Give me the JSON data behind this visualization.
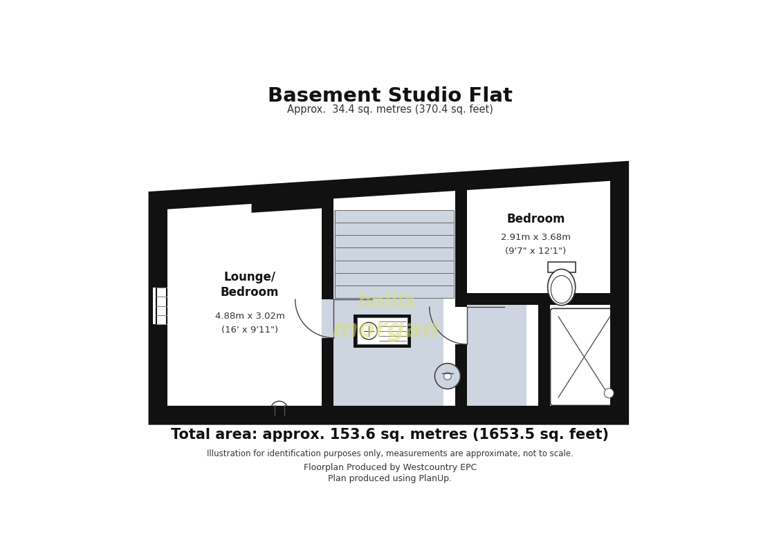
{
  "title": "Basement Studio Flat",
  "subtitle": "Approx.  34.4 sq. metres (370.4 sq. feet)",
  "total_area": "Total area: approx. 153.6 sq. metres (1653.5 sq. feet)",
  "disclaimer": "Illustration for identification purposes only, measurements are approximate, not to scale.",
  "footer1": "Floorplan Produced by Westcountry EPC",
  "footer2": "Plan produced using PlanUp.",
  "bg_color": "#ffffff",
  "wall_color": "#111111",
  "hallway_color": "#cdd5e0",
  "room1_label_bold": "Lounge/\nBedroom",
  "room1_dim1": "4.88m x 3.02m",
  "room1_dim2": "(16' x 9'11\")",
  "room2_label_bold": "Bedroom",
  "room2_dim1": "2.91m x 3.68m",
  "room2_dim2": "(9'7\" x 12'1\")",
  "watermark1": "hollis",
  "watermark2": "morgan",
  "wm_color": "#d8e070"
}
